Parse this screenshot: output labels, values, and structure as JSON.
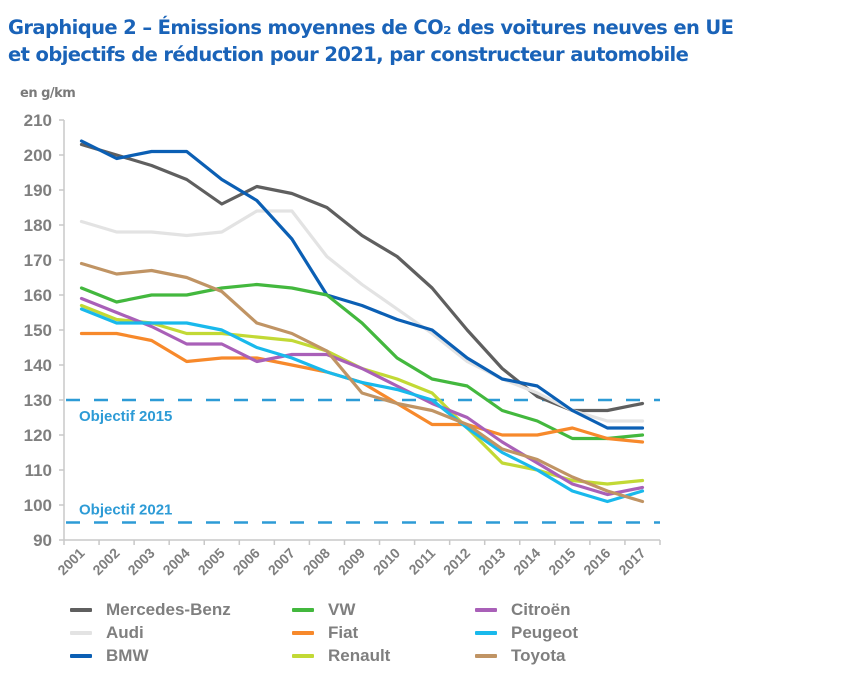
{
  "title_line1": "Graphique 2 – Émissions moyennes de CO₂ des voitures neuves en UE",
  "title_line2": "et objectifs de réduction pour 2021, par constructeur automobile",
  "unit_label": "en g/km",
  "chart_data": {
    "type": "line",
    "title": "Graphique 2 – Émissions moyennes de CO₂ des voitures neuves en UE et objectifs de réduction pour 2021, par constructeur automobile",
    "xlabel": "",
    "ylabel": "en g/km",
    "ylim": [
      90,
      210
    ],
    "yticks": [
      "90",
      "100",
      "110",
      "120",
      "130",
      "140",
      "150",
      "160",
      "170",
      "180",
      "190",
      "200",
      "210"
    ],
    "categories": [
      "2001",
      "2002",
      "2003",
      "2004",
      "2005",
      "2006",
      "2007",
      "2008",
      "2009",
      "2010",
      "2011",
      "2012",
      "2013",
      "2014",
      "2015",
      "2016",
      "2017"
    ],
    "grid": false,
    "legend_position": "bottom",
    "targets": [
      {
        "label": "Objectif 2015",
        "value": 130,
        "color": "#2d9bd6"
      },
      {
        "label": "Objectif 2021",
        "value": 95,
        "color": "#2d9bd6"
      }
    ],
    "series": [
      {
        "name": "Mercedes-Benz",
        "color": "#5f5f5f",
        "values": [
          203,
          200,
          197,
          193,
          186,
          191,
          189,
          185,
          177,
          171,
          162,
          150,
          139,
          131,
          127,
          127,
          129
        ]
      },
      {
        "name": "Audi",
        "color": "#e3e3e3",
        "values": [
          181,
          178,
          178,
          177,
          178,
          184,
          184,
          171,
          163,
          156,
          149,
          141,
          136,
          132,
          127,
          124,
          124
        ]
      },
      {
        "name": "BMW",
        "color": "#0b5fb4",
        "values": [
          204,
          199,
          201,
          201,
          193,
          187,
          176,
          160,
          157,
          153,
          150,
          142,
          136,
          134,
          127,
          122,
          122
        ]
      },
      {
        "name": "VW",
        "color": "#43b83e",
        "values": [
          162,
          158,
          160,
          160,
          162,
          163,
          162,
          160,
          152,
          142,
          136,
          134,
          127,
          124,
          119,
          119,
          120
        ]
      },
      {
        "name": "Fiat",
        "color": "#f7892b",
        "values": [
          149,
          149,
          147,
          141,
          142,
          142,
          140,
          138,
          135,
          129,
          123,
          123,
          120,
          120,
          122,
          119,
          118
        ]
      },
      {
        "name": "Renault",
        "color": "#c2d935",
        "values": [
          157,
          153,
          152,
          149,
          149,
          148,
          147,
          144,
          139,
          136,
          132,
          122,
          112,
          110,
          107,
          106,
          107
        ]
      },
      {
        "name": "Citroën",
        "color": "#a960b8",
        "values": [
          159,
          155,
          151,
          146,
          146,
          141,
          143,
          143,
          139,
          134,
          129,
          125,
          118,
          112,
          106,
          103,
          105
        ]
      },
      {
        "name": "Peugeot",
        "color": "#19b9ec",
        "values": [
          156,
          152,
          152,
          152,
          150,
          145,
          142,
          138,
          135,
          133,
          130,
          122,
          115,
          110,
          104,
          101,
          104
        ]
      },
      {
        "name": "Toyota",
        "color": "#c09464",
        "values": [
          169,
          166,
          167,
          165,
          161,
          152,
          149,
          144,
          132,
          129,
          127,
          123,
          116,
          113,
          108,
          104,
          101
        ]
      }
    ]
  }
}
